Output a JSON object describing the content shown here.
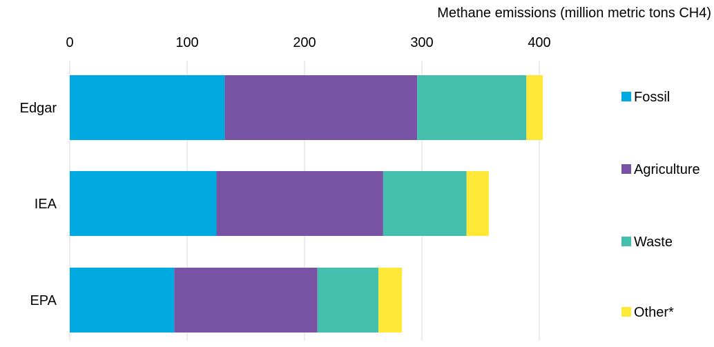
{
  "chart_data": {
    "type": "bar",
    "orientation": "horizontal",
    "stacked": true,
    "title": "",
    "xlabel": "Methane emissions (million metric tons CH4)",
    "ylabel": "",
    "xlim": [
      0,
      400
    ],
    "x_ticks": [
      0,
      100,
      200,
      300,
      400
    ],
    "x_axis_position": "top",
    "grid": true,
    "legend_position": "right",
    "categories": [
      "Edgar",
      "IEA",
      "EPA"
    ],
    "series": [
      {
        "name": "Fossil",
        "color": "#00A9E0",
        "values": [
          132,
          125,
          89
        ]
      },
      {
        "name": "Agriculture",
        "color": "#7953A3",
        "values": [
          164,
          142,
          122
        ]
      },
      {
        "name": "Waste",
        "color": "#45BFAD",
        "values": [
          93,
          71,
          52
        ]
      },
      {
        "name": "Other*",
        "color": "#FFE838",
        "values": [
          14,
          19,
          20
        ]
      }
    ]
  }
}
